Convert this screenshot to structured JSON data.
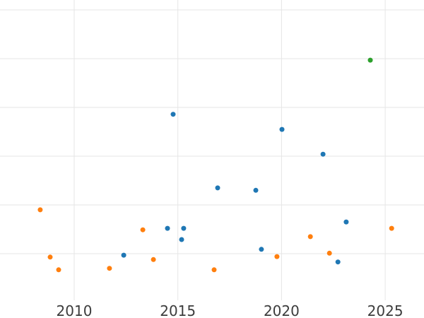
{
  "page": {
    "background_color": "#ffffff"
  },
  "chart_data": {
    "type": "scatter",
    "title": "",
    "subtitle": "",
    "xlabel": "",
    "ylabel": "",
    "legend": "none",
    "grid": "on",
    "gridline_color": "#e6e6e6",
    "tick_label_color": "#3c3c3c",
    "x_ticks": [
      2010,
      2015,
      2020,
      2025
    ],
    "x_tick_labels": [
      "2010",
      "2015",
      "2020",
      "2025"
    ],
    "xlim": [
      2006.42,
      2026.87
    ],
    "y_axis_labels_visible": false,
    "y_unit": "gridline-units (y axis is unlabeled; 1 unit = one gridline spacing, 0 = one spacing below lowest visible gridline)",
    "y_gridline_values": [
      1,
      2,
      3,
      4,
      5,
      6
    ],
    "ylim": [
      0.04,
      6.2
    ],
    "marker_radius_px": 3.5,
    "series": [
      {
        "name": "blue",
        "color": "#1f77b4",
        "points": [
          {
            "x": 2012.39,
            "y": 0.97
          },
          {
            "x": 2014.5,
            "y": 1.52
          },
          {
            "x": 2014.77,
            "y": 3.86
          },
          {
            "x": 2015.18,
            "y": 1.29
          },
          {
            "x": 2015.28,
            "y": 1.52
          },
          {
            "x": 2016.92,
            "y": 2.35
          },
          {
            "x": 2018.76,
            "y": 2.3
          },
          {
            "x": 2019.03,
            "y": 1.09
          },
          {
            "x": 2020.02,
            "y": 3.55
          },
          {
            "x": 2022.0,
            "y": 3.04
          },
          {
            "x": 2022.72,
            "y": 0.83
          },
          {
            "x": 2023.12,
            "y": 1.65
          }
        ]
      },
      {
        "name": "orange",
        "color": "#ff7f0e",
        "points": [
          {
            "x": 2008.36,
            "y": 1.9
          },
          {
            "x": 2008.84,
            "y": 0.93
          },
          {
            "x": 2009.25,
            "y": 0.67
          },
          {
            "x": 2011.7,
            "y": 0.7
          },
          {
            "x": 2013.31,
            "y": 1.49
          },
          {
            "x": 2013.82,
            "y": 0.88
          },
          {
            "x": 2016.75,
            "y": 0.67
          },
          {
            "x": 2019.78,
            "y": 0.94
          },
          {
            "x": 2021.39,
            "y": 1.35
          },
          {
            "x": 2022.31,
            "y": 1.01
          },
          {
            "x": 2025.31,
            "y": 1.52
          }
        ]
      },
      {
        "name": "green",
        "color": "#2ca02c",
        "points": [
          {
            "x": 2024.28,
            "y": 4.97
          }
        ]
      }
    ]
  }
}
